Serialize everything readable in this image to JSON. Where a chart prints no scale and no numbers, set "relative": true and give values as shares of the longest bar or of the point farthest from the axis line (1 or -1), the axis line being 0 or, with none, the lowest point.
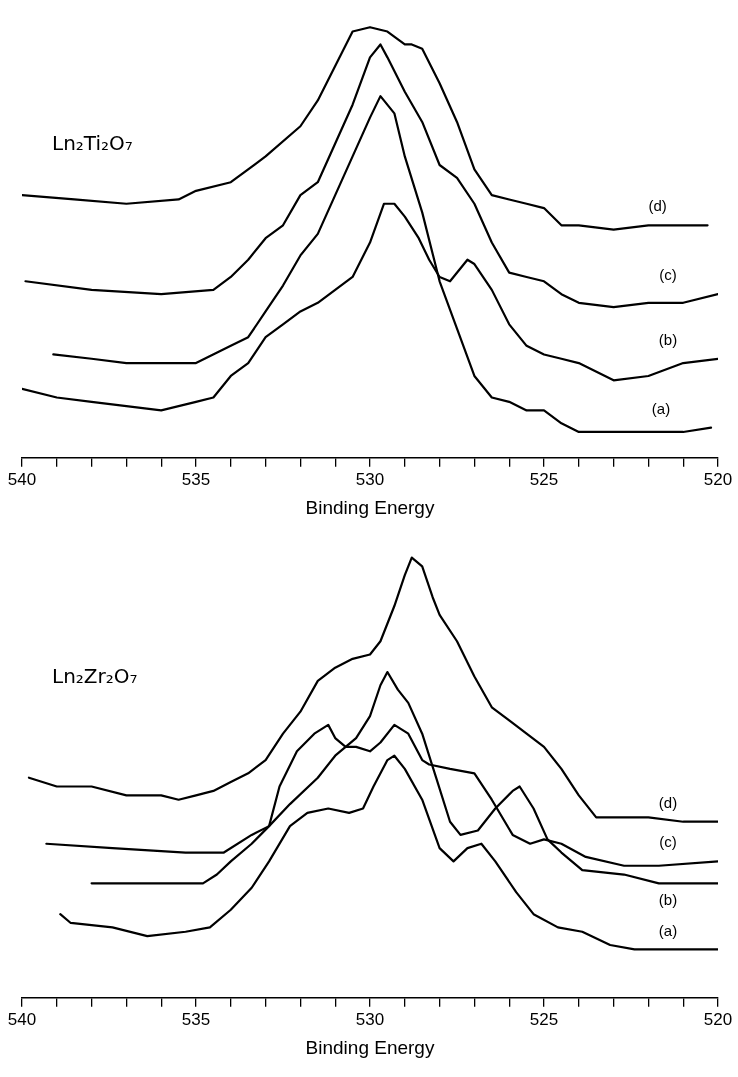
{
  "chart_data": [
    {
      "type": "line",
      "title": "Ln₂Ti₂O₇",
      "xlabel": "Binding Energy",
      "relative": true,
      "marker": "none",
      "xlim": [
        540,
        520
      ],
      "xticks": [
        540,
        {
          "value": 539,
          "label": null
        },
        {
          "value": 538,
          "label": null
        },
        {
          "value": 537,
          "label": null
        },
        {
          "value": 536,
          "label": null
        },
        535,
        {
          "value": 534,
          "label": null
        },
        {
          "value": 533,
          "label": null
        },
        {
          "value": 532,
          "label": null
        },
        {
          "value": 531,
          "label": null
        },
        530,
        {
          "value": 529,
          "label": null
        },
        {
          "value": 528,
          "label": null
        },
        {
          "value": 527,
          "label": null
        },
        {
          "value": 526,
          "label": null
        },
        525,
        {
          "value": 524,
          "label": null
        },
        {
          "value": 523,
          "label": null
        },
        {
          "value": 522,
          "label": null
        },
        {
          "value": 521,
          "label": null
        },
        520
      ],
      "series": [
        {
          "name": "(a)",
          "color": "#000000",
          "x": [
            539.1,
            538,
            537,
            536,
            535,
            534,
            533.5,
            533,
            532.5,
            532,
            531.5,
            531,
            530.5,
            530,
            529.7,
            529.3,
            529,
            528.5,
            528,
            527.5,
            527,
            526.5,
            526,
            525.5,
            525,
            524.5,
            524,
            523,
            522,
            521,
            520.2
          ],
          "values": [
            0.24,
            0.23,
            0.22,
            0.22,
            0.22,
            0.26,
            0.28,
            0.34,
            0.4,
            0.47,
            0.52,
            0.61,
            0.7,
            0.79,
            0.84,
            0.8,
            0.7,
            0.57,
            0.41,
            0.3,
            0.19,
            0.14,
            0.13,
            0.11,
            0.11,
            0.08,
            0.06,
            0.06,
            0.06,
            0.06,
            0.07
          ]
        },
        {
          "name": "(b)",
          "color": "#000000",
          "x": [
            540,
            539,
            538,
            537,
            536,
            535,
            534.5,
            534,
            533.5,
            533,
            532.5,
            532,
            531.5,
            531,
            530.5,
            530,
            529.6,
            529.3,
            529,
            528.6,
            528.3,
            528,
            527.7,
            527.2,
            527,
            526.5,
            526,
            525.5,
            525,
            524.5,
            524,
            523,
            522,
            521,
            520
          ],
          "values": [
            0.16,
            0.14,
            0.13,
            0.12,
            0.11,
            0.13,
            0.14,
            0.19,
            0.22,
            0.28,
            0.31,
            0.34,
            0.36,
            0.39,
            0.42,
            0.5,
            0.59,
            0.59,
            0.56,
            0.51,
            0.46,
            0.42,
            0.41,
            0.46,
            0.45,
            0.39,
            0.31,
            0.26,
            0.24,
            0.23,
            0.22,
            0.18,
            0.19,
            0.22,
            0.23
          ]
        },
        {
          "name": "(c)",
          "color": "#000000",
          "x": [
            539.9,
            538,
            536,
            534.5,
            534,
            533.5,
            533,
            532.5,
            532,
            531.5,
            531,
            530.5,
            530,
            529.7,
            529.5,
            529,
            528.5,
            528,
            527.5,
            527,
            526.5,
            526,
            525.5,
            525,
            524.5,
            524,
            523,
            522,
            521,
            520
          ],
          "values": [
            0.41,
            0.39,
            0.38,
            0.39,
            0.42,
            0.46,
            0.51,
            0.54,
            0.61,
            0.64,
            0.73,
            0.82,
            0.93,
            0.96,
            0.93,
            0.85,
            0.78,
            0.68,
            0.65,
            0.59,
            0.5,
            0.43,
            0.42,
            0.41,
            0.38,
            0.36,
            0.35,
            0.36,
            0.36,
            0.38
          ]
        },
        {
          "name": "(d)",
          "color": "#000000",
          "x": [
            540,
            538.5,
            537,
            535.5,
            535,
            534,
            533,
            532,
            531.5,
            531,
            530.5,
            530,
            529.5,
            529,
            528.8,
            528.5,
            528,
            527.5,
            527,
            526.5,
            526,
            525.5,
            525,
            524.5,
            524,
            523,
            522,
            521,
            520.3
          ],
          "values": [
            0.61,
            0.6,
            0.59,
            0.6,
            0.62,
            0.64,
            0.7,
            0.77,
            0.83,
            0.91,
            0.99,
            1.0,
            0.99,
            0.96,
            0.96,
            0.95,
            0.87,
            0.78,
            0.67,
            0.61,
            0.6,
            0.59,
            0.58,
            0.54,
            0.54,
            0.53,
            0.54,
            0.54,
            0.54
          ]
        }
      ]
    },
    {
      "type": "line",
      "title": "Ln₂Zr₂O₇",
      "xlabel": "Binding Energy",
      "relative": true,
      "marker": "none",
      "xlim": [
        540,
        520
      ],
      "xticks": [
        540,
        {
          "value": 539,
          "label": null
        },
        {
          "value": 538,
          "label": null
        },
        {
          "value": 537,
          "label": null
        },
        {
          "value": 536,
          "label": null
        },
        535,
        {
          "value": 534,
          "label": null
        },
        {
          "value": 533,
          "label": null
        },
        {
          "value": 532,
          "label": null
        },
        {
          "value": 531,
          "label": null
        },
        530,
        {
          "value": 529,
          "label": null
        },
        {
          "value": 528,
          "label": null
        },
        {
          "value": 527,
          "label": null
        },
        {
          "value": 526,
          "label": null
        },
        525,
        {
          "value": 524,
          "label": null
        },
        {
          "value": 523,
          "label": null
        },
        {
          "value": 522,
          "label": null
        },
        {
          "value": 521,
          "label": null
        },
        520
      ],
      "series": [
        {
          "name": "(a)",
          "color": "#000000",
          "x": [
            538.9,
            538.6,
            537.4,
            536.4,
            535.3,
            534.6,
            534,
            533.4,
            532.9,
            532.3,
            531.8,
            531.2,
            530.6,
            530.2,
            529.9,
            529.5,
            529.3,
            529,
            528.5,
            528,
            527.6,
            527.2,
            526.8,
            526.4,
            525.8,
            525.3,
            524.6,
            523.9,
            523.1,
            522.4,
            521.1,
            520
          ],
          "values": [
            0.19,
            0.17,
            0.16,
            0.14,
            0.15,
            0.16,
            0.2,
            0.25,
            0.31,
            0.39,
            0.42,
            0.43,
            0.42,
            0.43,
            0.48,
            0.54,
            0.55,
            0.52,
            0.45,
            0.34,
            0.31,
            0.34,
            0.35,
            0.31,
            0.24,
            0.19,
            0.16,
            0.15,
            0.12,
            0.11,
            0.11,
            0.11
          ]
        },
        {
          "name": "(b)",
          "color": "#000000",
          "x": [
            538,
            536.4,
            534.8,
            534.4,
            534,
            533.4,
            532.9,
            532.3,
            531.5,
            531,
            530.4,
            530,
            529.7,
            529.5,
            529.2,
            528.9,
            528.5,
            528.1,
            527.7,
            527.4,
            526.9,
            526.4,
            525.9,
            525.7,
            525.3,
            524.9,
            524.5,
            523.9,
            522.7,
            521.7,
            520
          ],
          "values": [
            0.26,
            0.26,
            0.26,
            0.28,
            0.31,
            0.35,
            0.39,
            0.44,
            0.5,
            0.55,
            0.59,
            0.64,
            0.71,
            0.74,
            0.7,
            0.67,
            0.6,
            0.5,
            0.4,
            0.37,
            0.38,
            0.43,
            0.47,
            0.48,
            0.43,
            0.36,
            0.33,
            0.29,
            0.28,
            0.26,
            0.26
          ]
        },
        {
          "name": "(c)",
          "color": "#000000",
          "x": [
            539.3,
            537.4,
            535.3,
            534.2,
            533.4,
            532.9,
            532.6,
            532.1,
            531.6,
            531.2,
            531,
            530.7,
            530.4,
            530,
            529.7,
            529.3,
            528.9,
            528.5,
            528.3,
            527.7,
            527,
            526.5,
            525.9,
            525.4,
            525,
            524.5,
            523.8,
            522.7,
            521.7,
            520
          ],
          "values": [
            0.35,
            0.34,
            0.33,
            0.33,
            0.37,
            0.39,
            0.48,
            0.56,
            0.6,
            0.62,
            0.59,
            0.57,
            0.57,
            0.56,
            0.58,
            0.62,
            0.6,
            0.54,
            0.53,
            0.52,
            0.51,
            0.45,
            0.37,
            0.35,
            0.36,
            0.35,
            0.32,
            0.3,
            0.3,
            0.31
          ]
        },
        {
          "name": "(d)",
          "color": "#000000",
          "x": [
            539.8,
            539,
            538,
            537,
            536,
            535.5,
            535,
            534.5,
            534,
            533.5,
            533,
            532.5,
            532,
            531.5,
            531,
            530.5,
            530,
            529.7,
            529.3,
            529,
            528.8,
            528.5,
            528.2,
            528,
            527.5,
            527,
            526.5,
            526,
            525.5,
            525,
            524.5,
            524,
            523.5,
            523,
            522,
            521,
            520
          ],
          "values": [
            0.5,
            0.48,
            0.48,
            0.46,
            0.46,
            0.45,
            0.46,
            0.47,
            0.49,
            0.51,
            0.54,
            0.6,
            0.65,
            0.72,
            0.75,
            0.77,
            0.78,
            0.81,
            0.89,
            0.96,
            1.0,
            0.98,
            0.91,
            0.87,
            0.81,
            0.73,
            0.66,
            0.63,
            0.6,
            0.57,
            0.52,
            0.46,
            0.41,
            0.41,
            0.41,
            0.4,
            0.4
          ]
        }
      ]
    }
  ]
}
